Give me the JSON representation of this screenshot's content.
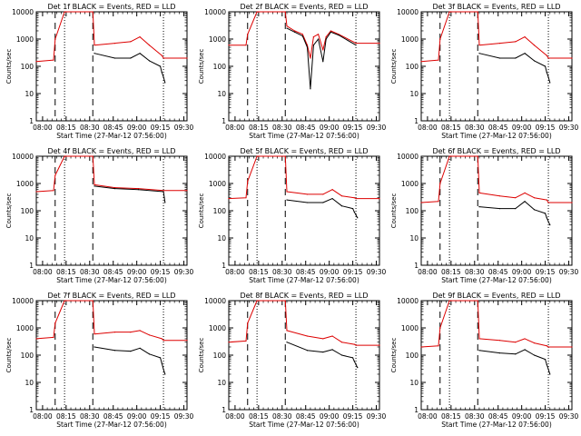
{
  "figure": {
    "x_title": "Start Time (27-Mar-12 07:56:00)",
    "y_label": "Counts/sec",
    "x_ticks": [
      "08:00",
      "08:15",
      "08:30",
      "08:45",
      "09:00",
      "09:15",
      "09:30"
    ],
    "y_ticks": [
      "1",
      "10",
      "100",
      "1000",
      "10000"
    ],
    "colors": {
      "events": "#000000",
      "lld": "#dd0000",
      "axis": "#000000"
    }
  },
  "chart_data": [
    {
      "type": "line",
      "title": "Det 1f BLACK = Events, RED = LLD",
      "ylabel": "Counts/sec",
      "xlabel": "Start Time (27-Mar-12 07:56:00)",
      "x_range_min": [
        0,
        96
      ],
      "y_range_log": [
        1,
        10000
      ],
      "dashed_min": [
        12,
        36
      ],
      "dotted_min": [
        18,
        81
      ],
      "series": [
        {
          "name": "LLD",
          "color": "#dd0000",
          "x": [
            0,
            11,
            12,
            18,
            19,
            36,
            37,
            50,
            60,
            66,
            72,
            80,
            81,
            96
          ],
          "y": [
            150,
            170,
            1000,
            12000,
            12000,
            12000,
            600,
            700,
            800,
            1200,
            600,
            250,
            200,
            200
          ]
        },
        {
          "name": "Events",
          "color": "#000000",
          "x": [
            37,
            50,
            60,
            66,
            72,
            79,
            80,
            81,
            82
          ],
          "y": [
            300,
            200,
            200,
            300,
            160,
            100,
            60,
            40,
            25
          ]
        }
      ]
    },
    {
      "type": "line",
      "title": "Det 2f BLACK = Events, RED = LLD",
      "ylabel": "Counts/sec",
      "xlabel": "Start Time (27-Mar-12 07:56:00)",
      "x_range_min": [
        0,
        96
      ],
      "y_range_log": [
        1,
        10000
      ],
      "dashed_min": [
        12,
        36
      ],
      "dotted_min": [
        18,
        81
      ],
      "series": [
        {
          "name": "LLD",
          "color": "#dd0000",
          "x": [
            0,
            11,
            12,
            18,
            19,
            36,
            37,
            42,
            47,
            50,
            52,
            54,
            57,
            60,
            62,
            65,
            70,
            81,
            96
          ],
          "y": [
            600,
            600,
            1500,
            12000,
            12000,
            12000,
            3000,
            2000,
            1500,
            600,
            200,
            1200,
            1500,
            400,
            1200,
            2000,
            1500,
            700,
            700
          ]
        },
        {
          "name": "Events",
          "color": "#000000",
          "x": [
            37,
            42,
            47,
            50,
            52,
            54,
            57,
            60,
            62,
            65,
            70,
            81
          ],
          "y": [
            2500,
            1800,
            1300,
            500,
            15,
            600,
            1000,
            150,
            1000,
            1800,
            1400,
            600
          ]
        }
      ]
    },
    {
      "type": "line",
      "title": "Det 3f BLACK = Events, RED = LLD",
      "ylabel": "Counts/sec",
      "xlabel": "Start Time (27-Mar-12 07:56:00)",
      "x_range_min": [
        0,
        96
      ],
      "y_range_log": [
        1,
        10000
      ],
      "dashed_min": [
        12,
        36
      ],
      "dotted_min": [
        18,
        81
      ],
      "series": [
        {
          "name": "LLD",
          "color": "#dd0000",
          "x": [
            0,
            11,
            12,
            18,
            19,
            36,
            37,
            50,
            60,
            66,
            72,
            80,
            81,
            96
          ],
          "y": [
            150,
            170,
            1000,
            12000,
            12000,
            12000,
            600,
            700,
            800,
            1200,
            600,
            250,
            200,
            200
          ]
        },
        {
          "name": "Events",
          "color": "#000000",
          "x": [
            37,
            50,
            60,
            66,
            72,
            79,
            80,
            81,
            82
          ],
          "y": [
            300,
            200,
            200,
            300,
            160,
            100,
            60,
            40,
            25
          ]
        }
      ]
    },
    {
      "type": "line",
      "title": "Det 4f BLACK = Events, RED = LLD",
      "ylabel": "Counts/sec",
      "xlabel": "Start Time (27-Mar-12 07:56:00)",
      "x_range_min": [
        0,
        96
      ],
      "y_range_log": [
        1,
        10000
      ],
      "dashed_min": [
        12,
        36
      ],
      "dotted_min": [
        18,
        81
      ],
      "series": [
        {
          "name": "LLD",
          "color": "#dd0000",
          "x": [
            0,
            11,
            12,
            18,
            19,
            36,
            37,
            50,
            65,
            81,
            96
          ],
          "y": [
            500,
            550,
            2000,
            12000,
            12000,
            12000,
            900,
            700,
            650,
            550,
            550
          ]
        },
        {
          "name": "Events",
          "color": "#000000",
          "x": [
            37,
            50,
            65,
            81,
            82
          ],
          "y": [
            800,
            650,
            600,
            500,
            200
          ]
        }
      ]
    },
    {
      "type": "line",
      "title": "Det 5f BLACK = Events, RED = LLD",
      "ylabel": "Counts/sec",
      "xlabel": "Start Time (27-Mar-12 07:56:00)",
      "x_range_min": [
        0,
        96
      ],
      "y_range_log": [
        1,
        10000
      ],
      "dashed_min": [
        12,
        36
      ],
      "dotted_min": [
        18,
        81
      ],
      "series": [
        {
          "name": "LLD",
          "color": "#dd0000",
          "x": [
            0,
            11,
            12,
            18,
            19,
            36,
            37,
            50,
            60,
            66,
            72,
            80,
            81,
            96
          ],
          "y": [
            280,
            300,
            1200,
            12000,
            12000,
            12000,
            500,
            400,
            400,
            600,
            350,
            300,
            280,
            280
          ]
        },
        {
          "name": "Events",
          "color": "#000000",
          "x": [
            37,
            50,
            60,
            66,
            72,
            79,
            80,
            81,
            82
          ],
          "y": [
            250,
            200,
            200,
            280,
            150,
            120,
            90,
            70,
            55
          ]
        }
      ]
    },
    {
      "type": "line",
      "title": "Det 6f BLACK = Events, RED = LLD",
      "ylabel": "Counts/sec",
      "xlabel": "Start Time (27-Mar-12 07:56:00)",
      "x_range_min": [
        0,
        96
      ],
      "y_range_log": [
        1,
        10000
      ],
      "dashed_min": [
        12,
        36
      ],
      "dotted_min": [
        18,
        81
      ],
      "series": [
        {
          "name": "LLD",
          "color": "#dd0000",
          "x": [
            0,
            11,
            12,
            18,
            19,
            36,
            37,
            50,
            60,
            66,
            72,
            80,
            81,
            96
          ],
          "y": [
            200,
            220,
            1000,
            12000,
            12000,
            12000,
            450,
            350,
            300,
            450,
            300,
            250,
            200,
            200
          ]
        },
        {
          "name": "Events",
          "color": "#000000",
          "x": [
            37,
            50,
            60,
            66,
            72,
            79,
            80,
            81,
            82
          ],
          "y": [
            140,
            120,
            120,
            220,
            110,
            80,
            55,
            40,
            30
          ]
        }
      ]
    },
    {
      "type": "line",
      "title": "Det 7f BLACK = Events, RED = LLD",
      "ylabel": "Counts/sec",
      "xlabel": "Start Time (27-Mar-12 07:56:00)",
      "x_range_min": [
        0,
        96
      ],
      "y_range_log": [
        1,
        10000
      ],
      "dashed_min": [
        12,
        36
      ],
      "dotted_min": [
        18,
        81
      ],
      "series": [
        {
          "name": "LLD",
          "color": "#dd0000",
          "x": [
            0,
            11,
            12,
            18,
            19,
            36,
            37,
            50,
            60,
            66,
            72,
            80,
            81,
            96
          ],
          "y": [
            400,
            450,
            1500,
            12000,
            12000,
            12000,
            600,
            700,
            700,
            800,
            550,
            400,
            350,
            350
          ]
        },
        {
          "name": "Events",
          "color": "#000000",
          "x": [
            37,
            50,
            60,
            66,
            72,
            79,
            80,
            81,
            82
          ],
          "y": [
            200,
            150,
            140,
            180,
            110,
            80,
            50,
            30,
            20
          ]
        }
      ]
    },
    {
      "type": "line",
      "title": "Det 8f BLACK = Events, RED = LLD",
      "ylabel": "Counts/sec",
      "xlabel": "Start Time (27-Mar-12 07:56:00)",
      "x_range_min": [
        0,
        96
      ],
      "y_range_log": [
        1,
        10000
      ],
      "dashed_min": [
        12,
        36
      ],
      "dotted_min": [
        18,
        81
      ],
      "series": [
        {
          "name": "LLD",
          "color": "#dd0000",
          "x": [
            0,
            11,
            12,
            18,
            19,
            36,
            37,
            50,
            60,
            66,
            72,
            80,
            81,
            96
          ],
          "y": [
            300,
            330,
            1500,
            12000,
            12000,
            12000,
            800,
            500,
            400,
            500,
            300,
            250,
            230,
            230
          ]
        },
        {
          "name": "Events",
          "color": "#000000",
          "x": [
            37,
            50,
            60,
            66,
            72,
            79,
            80,
            81,
            82
          ],
          "y": [
            300,
            150,
            130,
            160,
            100,
            80,
            60,
            45,
            35
          ]
        }
      ]
    },
    {
      "type": "line",
      "title": "Det 9f BLACK = Events, RED = LLD",
      "ylabel": "Counts/sec",
      "xlabel": "Start Time (27-Mar-12 07:56:00)",
      "x_range_min": [
        0,
        96
      ],
      "y_range_log": [
        1,
        10000
      ],
      "dashed_min": [
        12,
        36
      ],
      "dotted_min": [
        18,
        81
      ],
      "series": [
        {
          "name": "LLD",
          "color": "#dd0000",
          "x": [
            0,
            11,
            12,
            18,
            19,
            36,
            37,
            50,
            60,
            66,
            72,
            80,
            81,
            96
          ],
          "y": [
            200,
            220,
            1000,
            12000,
            12000,
            12000,
            400,
            350,
            300,
            400,
            280,
            220,
            200,
            200
          ]
        },
        {
          "name": "Events",
          "color": "#000000",
          "x": [
            37,
            50,
            60,
            66,
            72,
            79,
            80,
            81,
            82
          ],
          "y": [
            150,
            120,
            110,
            160,
            100,
            70,
            45,
            30,
            20
          ]
        }
      ]
    }
  ]
}
